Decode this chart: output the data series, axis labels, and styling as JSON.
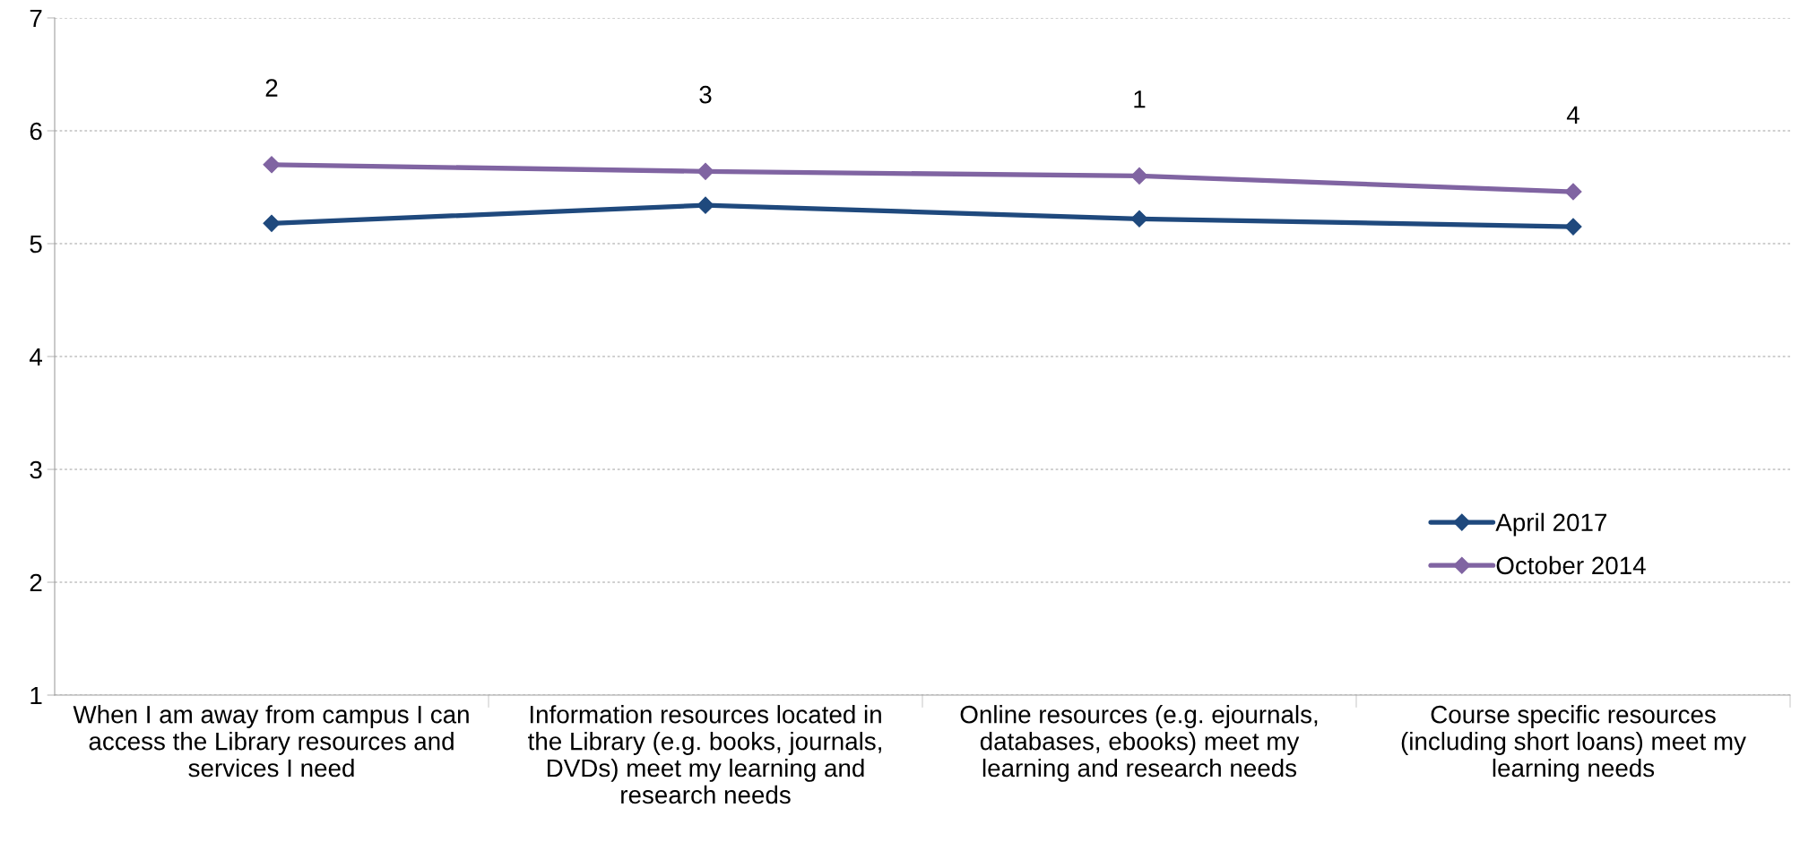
{
  "chart_data": {
    "type": "line",
    "categories": [
      "When I am away from campus I can access the Library resources and services I need",
      "Information resources located in the Library (e.g. books, journals, DVDs) meet my learning and research needs",
      "Online resources (e.g. ejournals, databases, ebooks) meet my learning and research needs",
      "Course specific resources (including short loans) meet my learning needs"
    ],
    "series": [
      {
        "name": "April 2017",
        "color": "#1f497d",
        "values": [
          5.18,
          5.34,
          5.22,
          5.15
        ]
      },
      {
        "name": "October 2014",
        "color": "#8064a2",
        "values": [
          5.7,
          5.64,
          5.6,
          5.46
        ]
      }
    ],
    "annotations": [
      "2",
      "3",
      "1",
      "4"
    ],
    "ylim": [
      1,
      7
    ],
    "yticks": [
      1,
      2,
      3,
      4,
      5,
      6,
      7
    ],
    "grid": "y",
    "legend": "bottom right",
    "marker": "diamond",
    "line_style": "solid"
  }
}
